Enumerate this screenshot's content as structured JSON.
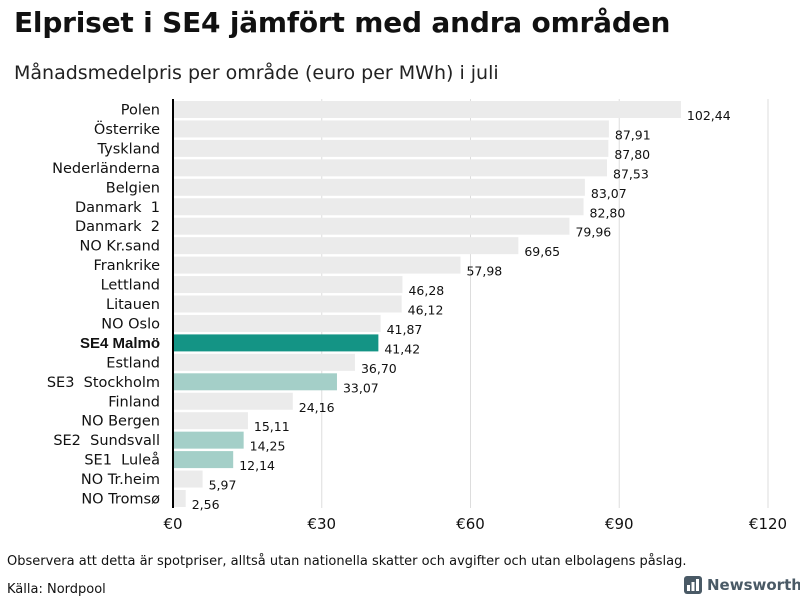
{
  "header": {
    "title": "Elpriset i SE4 jämfört med andra områden",
    "subtitle": "Månadsmedelpris per område (euro per MWh) i juli"
  },
  "footer": {
    "note": "Observera att detta är spotpriser, alltså utan nationella skatter och avgifter och utan elbolagens påslag.",
    "source": "Källa: Nordpool",
    "brand": "Newsworthy"
  },
  "colors": {
    "bar_default": "#ebebeb",
    "bar_highlight": "#149485",
    "bar_swedish": "#a4cfc8",
    "gridline": "#dddddd",
    "axis": "#000000",
    "brand": "#4a5a66"
  },
  "chart_data": {
    "type": "bar",
    "orientation": "horizontal",
    "title": "Elpriset i SE4 jämfört med andra områden",
    "subtitle": "Månadsmedelpris per område (euro per MWh) i juli",
    "xlabel": "",
    "ylabel": "",
    "xlim": [
      0,
      120
    ],
    "ticks": [
      0,
      30,
      60,
      90,
      120
    ],
    "tick_labels": [
      "€0",
      "€30",
      "€60",
      "€90",
      "€120"
    ],
    "grid": true,
    "categories": [
      "Polen",
      "Österrike",
      "Tyskland",
      "Nederländerna",
      "Belgien",
      "Danmark  1",
      "Danmark  2",
      "NO Kr.sand",
      "Frankrike",
      "Lettland",
      "Litauen",
      "NO Oslo",
      "SE4 Malmö",
      "Estland",
      "SE3  Stockholm",
      "Finland",
      "NO Bergen",
      "SE2  Sundsvall",
      "SE1  Luleå",
      "NO Tr.heim",
      "NO Tromsø"
    ],
    "values": [
      102.44,
      87.91,
      87.8,
      87.53,
      83.07,
      82.8,
      79.96,
      69.65,
      57.98,
      46.28,
      46.12,
      41.87,
      41.42,
      36.7,
      33.07,
      24.16,
      15.11,
      14.25,
      12.14,
      5.97,
      2.56
    ],
    "value_labels": [
      "102,44",
      "87,91",
      "87,80",
      "87,53",
      "83,07",
      "82,80",
      "79,96",
      "69,65",
      "57,98",
      "46,28",
      "46,12",
      "41,87",
      "41,42",
      "36,70",
      "33,07",
      "24,16",
      "15,11",
      "14,25",
      "12,14",
      "5,97",
      "2,56"
    ],
    "groups": [
      "other",
      "other",
      "other",
      "other",
      "other",
      "other",
      "other",
      "other",
      "other",
      "other",
      "other",
      "other",
      "highlight",
      "other",
      "swedish",
      "other",
      "other",
      "swedish",
      "swedish",
      "other",
      "other"
    ]
  }
}
